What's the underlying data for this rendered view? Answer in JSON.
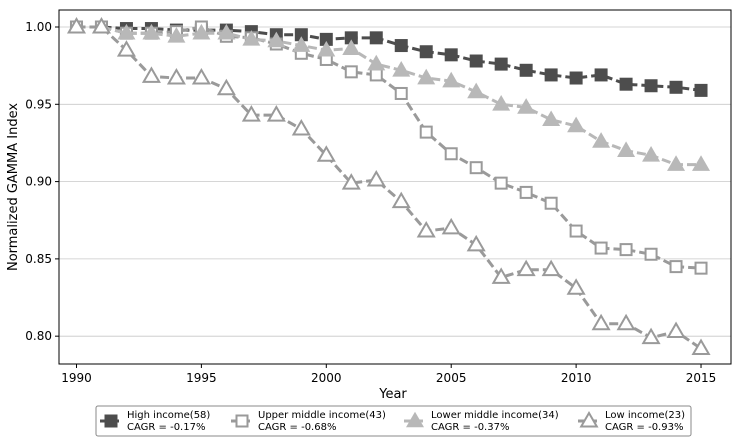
{
  "chart_data": {
    "type": "line",
    "xlabel": "Year",
    "ylabel": "Normalized GAMMA Index",
    "xlim": [
      1989.3,
      2016.2
    ],
    "ylim": [
      0.782,
      1.011
    ],
    "xticks": [
      1990,
      1995,
      2000,
      2005,
      2010,
      2015
    ],
    "yticks": [
      0.8,
      0.85,
      0.9,
      0.95,
      1.0
    ],
    "ytick_labels": [
      "0.80",
      "0.85",
      "0.90",
      "0.95",
      "1.00"
    ],
    "grid": "horizontal",
    "legend_position": "bottom-center",
    "x": [
      1990,
      1991,
      1992,
      1993,
      1994,
      1995,
      1996,
      1997,
      1998,
      1999,
      2000,
      2001,
      2002,
      2003,
      2004,
      2005,
      2006,
      2007,
      2008,
      2009,
      2010,
      2011,
      2012,
      2013,
      2014,
      2015
    ],
    "series": [
      {
        "name": "High income(58)",
        "cagr": "CAGR = -0.17%",
        "marker": "square-filled",
        "color": "#4d4d4d",
        "values": [
          1.0,
          1.0,
          0.999,
          0.999,
          0.998,
          0.998,
          0.998,
          0.997,
          0.995,
          0.995,
          0.992,
          0.993,
          0.993,
          0.988,
          0.984,
          0.982,
          0.978,
          0.976,
          0.972,
          0.969,
          0.967,
          0.969,
          0.963,
          0.962,
          0.961,
          0.959
        ]
      },
      {
        "name": "Upper middle income(43)",
        "cagr": "CAGR = -0.68%",
        "marker": "square-open",
        "color": "#9a9a9a",
        "values": [
          1.0,
          1.0,
          0.996,
          0.996,
          0.997,
          1.0,
          0.994,
          0.993,
          0.989,
          0.983,
          0.979,
          0.971,
          0.969,
          0.957,
          0.932,
          0.918,
          0.909,
          0.899,
          0.893,
          0.886,
          0.868,
          0.857,
          0.856,
          0.853,
          0.845,
          0.844
        ]
      },
      {
        "name": "Lower middle income(34)",
        "cagr": "CAGR = -0.37%",
        "marker": "triangle-filled",
        "color": "#b8b8b8",
        "values": [
          1.0,
          1.0,
          0.996,
          0.996,
          0.994,
          0.996,
          0.996,
          0.992,
          0.991,
          0.988,
          0.985,
          0.986,
          0.976,
          0.972,
          0.967,
          0.965,
          0.958,
          0.95,
          0.948,
          0.94,
          0.936,
          0.926,
          0.92,
          0.917,
          0.911,
          0.911
        ]
      },
      {
        "name": "Low income(23)",
        "cagr": "CAGR = -0.93%",
        "marker": "triangle-open",
        "color": "#9a9a9a",
        "values": [
          1.0,
          1.0,
          0.985,
          0.968,
          0.967,
          0.967,
          0.96,
          0.943,
          0.943,
          0.934,
          0.917,
          0.899,
          0.901,
          0.887,
          0.868,
          0.87,
          0.859,
          0.838,
          0.843,
          0.843,
          0.831,
          0.808,
          0.808,
          0.799,
          0.803,
          0.792
        ]
      }
    ]
  }
}
